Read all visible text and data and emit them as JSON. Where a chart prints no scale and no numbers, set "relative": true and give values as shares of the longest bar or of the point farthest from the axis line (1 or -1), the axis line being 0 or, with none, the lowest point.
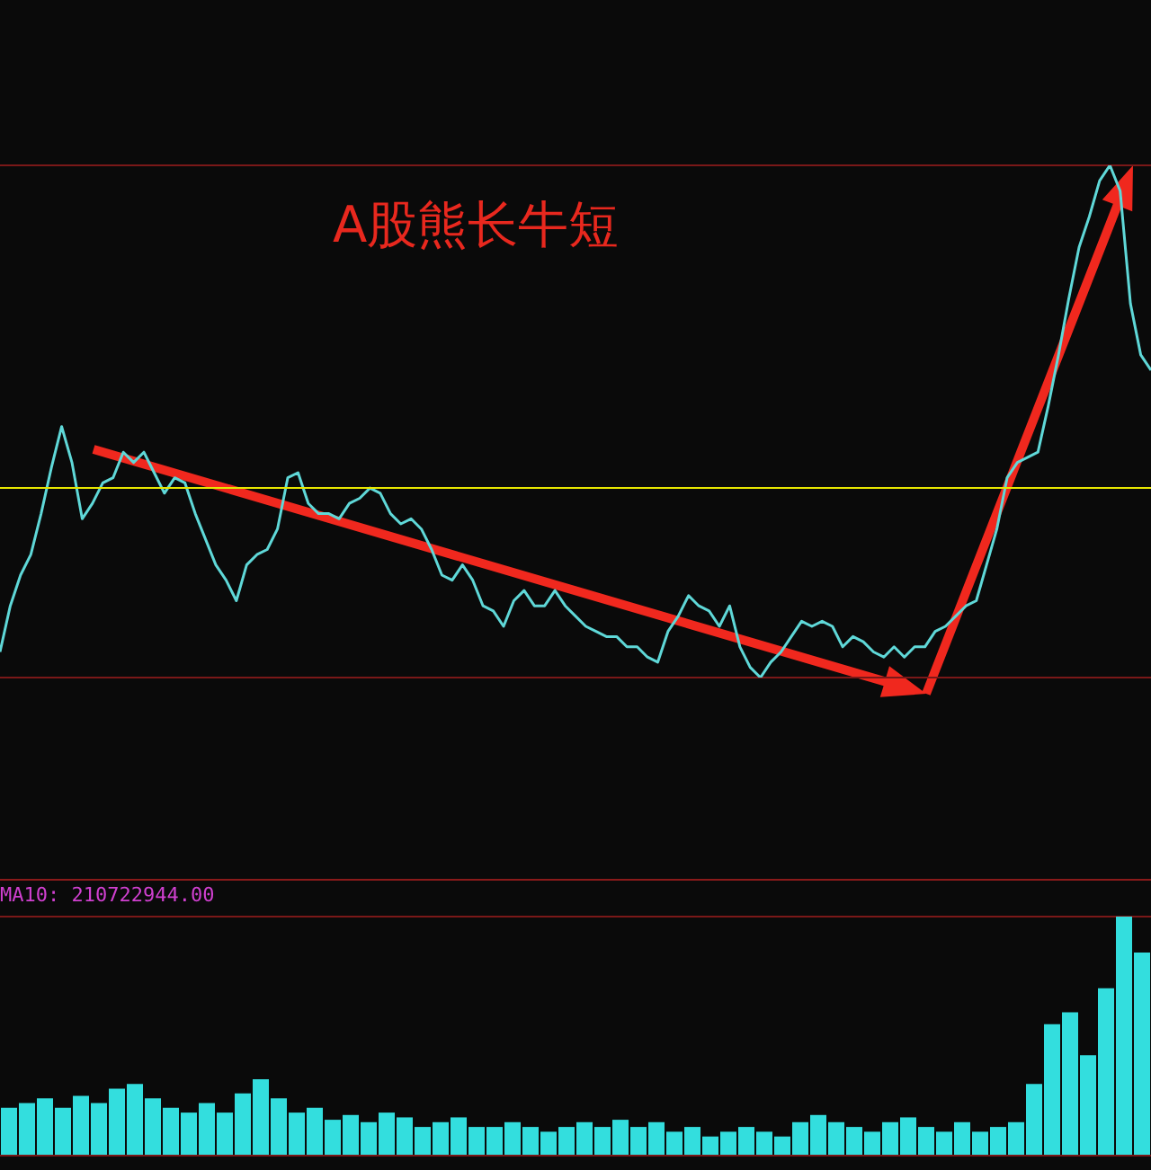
{
  "chart_data": [
    {
      "type": "line",
      "title": "A股熊长牛短",
      "relative": true,
      "grid": "y",
      "marker": "none",
      "categories": [
        null,
        null,
        null,
        null,
        null,
        null,
        null,
        null,
        null,
        null,
        null,
        null,
        null,
        null,
        null,
        null,
        null,
        null,
        null,
        null,
        null,
        null,
        null,
        null,
        null,
        null,
        null,
        null,
        null,
        null,
        null,
        null,
        null,
        null,
        null,
        null,
        null,
        null,
        null,
        null,
        null,
        null,
        null,
        null,
        null,
        null,
        null,
        null,
        null,
        null,
        null,
        null,
        null,
        null,
        null,
        null,
        null,
        null,
        null,
        null,
        null,
        null,
        null,
        null,
        null,
        null,
        null,
        null,
        null,
        null,
        null,
        null,
        null,
        null,
        null,
        null,
        null,
        null,
        null,
        null,
        null,
        null,
        null,
        null,
        null,
        null,
        null,
        null,
        null,
        null,
        null,
        null,
        null,
        null,
        null,
        null,
        null,
        null,
        null,
        null,
        null,
        null,
        null,
        null,
        null,
        null,
        null,
        null,
        null,
        null,
        null,
        null,
        null
      ],
      "series": [
        {
          "color": "#5fd8d8",
          "values": [
            0.05,
            0.14,
            0.2,
            0.24,
            0.32,
            0.41,
            0.49,
            0.42,
            0.31,
            0.34,
            0.38,
            0.39,
            0.44,
            0.42,
            0.44,
            0.4,
            0.36,
            0.39,
            0.38,
            0.32,
            0.27,
            0.22,
            0.19,
            0.15,
            0.22,
            0.24,
            0.25,
            0.29,
            0.39,
            0.4,
            0.34,
            0.32,
            0.32,
            0.31,
            0.34,
            0.35,
            0.37,
            0.36,
            0.32,
            0.3,
            0.31,
            0.29,
            0.25,
            0.2,
            0.19,
            0.22,
            0.19,
            0.14,
            0.13,
            0.1,
            0.15,
            0.17,
            0.14,
            0.14,
            0.17,
            0.14,
            0.12,
            0.1,
            0.09,
            0.08,
            0.08,
            0.06,
            0.06,
            0.04,
            0.03,
            0.09,
            0.12,
            0.16,
            0.14,
            0.13,
            0.1,
            0.14,
            0.06,
            0.02,
            0,
            0.03,
            0.05,
            0.08,
            0.11,
            0.1,
            0.11,
            0.1,
            0.06,
            0.08,
            0.07,
            0.05,
            0.04,
            0.06,
            0.04,
            0.06,
            0.06,
            0.09,
            0.1,
            0.12,
            0.14,
            0.15,
            0.22,
            0.29,
            0.39,
            0.42,
            0.43,
            0.44,
            0.53,
            0.63,
            0.74,
            0.84,
            0.9,
            0.97,
            1,
            0.95,
            0.73,
            0.63,
            0.6
          ]
        }
      ],
      "ref_lines": [
        {
          "axis": "y",
          "value": 0.37,
          "color": "#e6e600"
        }
      ]
    },
    {
      "type": "bar",
      "relative": true,
      "grid": "y",
      "annotations": [
        "MA10: 210722944.00"
      ],
      "categories": [
        null,
        null,
        null,
        null,
        null,
        null,
        null,
        null,
        null,
        null,
        null,
        null,
        null,
        null,
        null,
        null,
        null,
        null,
        null,
        null,
        null,
        null,
        null,
        null,
        null,
        null,
        null,
        null,
        null,
        null,
        null,
        null,
        null,
        null,
        null,
        null,
        null,
        null,
        null,
        null,
        null,
        null,
        null,
        null,
        null,
        null,
        null,
        null,
        null,
        null,
        null,
        null,
        null,
        null,
        null,
        null,
        null,
        null,
        null,
        null,
        null,
        null,
        null,
        null
      ],
      "series": [
        {
          "color": "#33dede",
          "values": [
            0.2,
            0.22,
            0.24,
            0.2,
            0.25,
            0.22,
            0.28,
            0.3,
            0.24,
            0.2,
            0.18,
            0.22,
            0.18,
            0.26,
            0.32,
            0.24,
            0.18,
            0.2,
            0.15,
            0.17,
            0.14,
            0.18,
            0.16,
            0.12,
            0.14,
            0.16,
            0.12,
            0.12,
            0.14,
            0.12,
            0.1,
            0.12,
            0.14,
            0.12,
            0.15,
            0.12,
            0.14,
            0.1,
            0.12,
            0.08,
            0.1,
            0.12,
            0.1,
            0.08,
            0.14,
            0.17,
            0.14,
            0.12,
            0.1,
            0.14,
            0.16,
            0.12,
            0.1,
            0.14,
            0.1,
            0.12,
            0.14,
            0.3,
            0.55,
            0.6,
            0.42,
            0.7,
            1,
            0.85
          ]
        }
      ]
    }
  ]
}
